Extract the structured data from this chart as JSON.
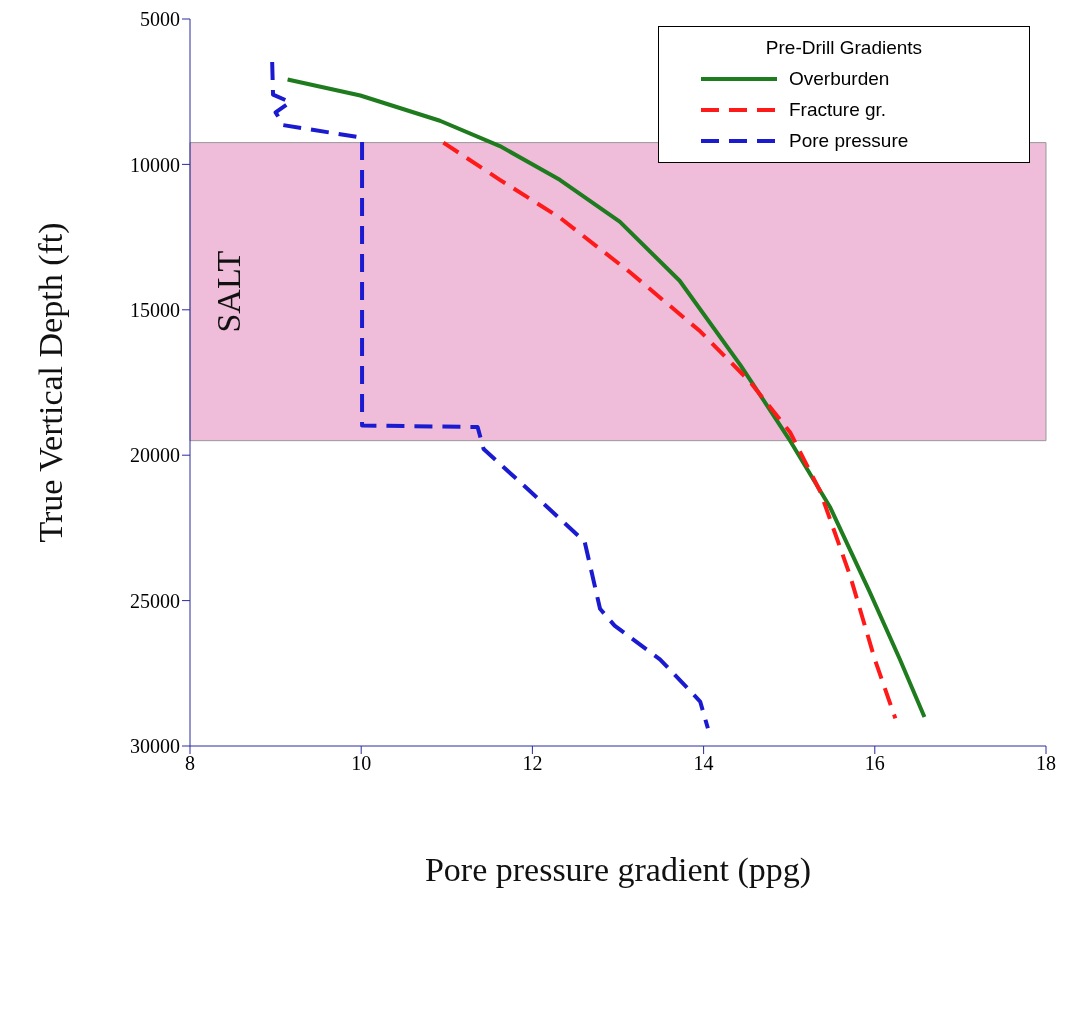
{
  "chart_data": {
    "type": "line",
    "xlabel": "Pore pressure gradient (ppg)",
    "ylabel": "True Vertical Depth (ft)",
    "legend_title": "Pre-Drill Gradients",
    "legend": "top right",
    "grid": false,
    "marker": "none",
    "xlim": [
      8,
      18
    ],
    "xticks": [
      8,
      10,
      12,
      14,
      16,
      18
    ],
    "ylim": [
      30000,
      5000
    ],
    "yticks": [
      5000,
      10000,
      15000,
      20000,
      25000,
      30000
    ],
    "bands": [
      {
        "axis": "y",
        "from": 9250,
        "to": 19500,
        "label": "SALT",
        "color": "#efbcd9"
      }
    ],
    "series": [
      {
        "name": "Overburden",
        "color": "#1e7b1e",
        "line_style": "solid",
        "x": [
          9.14,
          9.99,
          10.92,
          11.62,
          12.32,
          13.02,
          13.72,
          14.43,
          15.01,
          15.48,
          15.94,
          16.29,
          16.58
        ],
        "values": [
          7080,
          7630,
          8500,
          9370,
          10530,
          11970,
          14000,
          16900,
          19500,
          21800,
          24700,
          27000,
          29000
        ]
      },
      {
        "name": "Fracture gr.",
        "color": "#ff1a1a",
        "line_style": "dashed",
        "x": [
          10.96,
          11.62,
          12.32,
          13.14,
          13.96,
          14.54,
          15.01,
          15.36,
          15.71,
          16.0,
          16.24
        ],
        "values": [
          9250,
          10530,
          11830,
          13710,
          15740,
          17470,
          19210,
          21230,
          24130,
          27020,
          29050
        ]
      },
      {
        "name": "Pore pressure",
        "color": "#1a1ad0",
        "line_style": "dashed",
        "x": [
          8.96,
          8.97,
          9.17,
          9.0,
          9.09,
          10.01,
          10.01,
          11.36,
          11.43,
          11.97,
          12.61,
          12.79,
          12.96,
          13.49,
          13.96,
          14.05
        ],
        "values": [
          6480,
          7600,
          7860,
          8210,
          8650,
          9080,
          18980,
          19030,
          19790,
          21230,
          22970,
          25280,
          25860,
          27020,
          28470,
          29390
        ]
      }
    ]
  }
}
